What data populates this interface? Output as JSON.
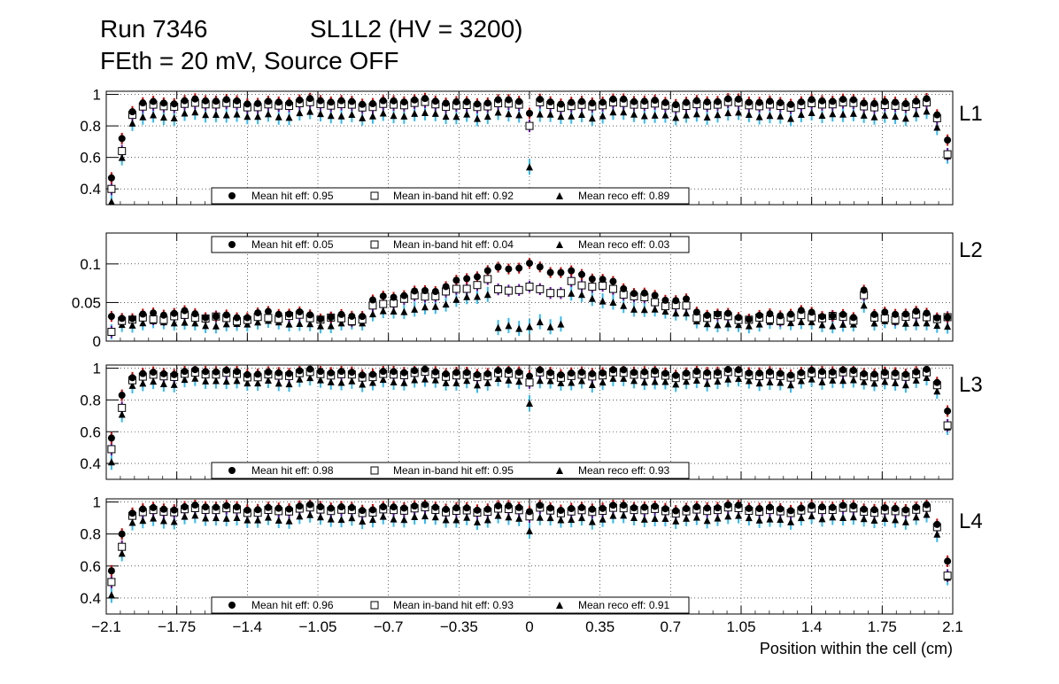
{
  "header": {
    "run": "Run 7346",
    "chamber": "SL1L2 (HV = 3200)",
    "conditions": "FEth = 20 mV, Source OFF"
  },
  "colors": {
    "hit_error": "#cc0000",
    "inband_error": "#6a0dad",
    "reco_error": "#33bbee",
    "marker": "#000000",
    "grid": "#000000"
  },
  "chart_data": {
    "type": "scatter",
    "xlabel": "Position within the cell (cm)",
    "xlim": [
      -2.1,
      2.1
    ],
    "x_ticks": [
      "−2.1",
      "−1.75",
      "−1.4",
      "−1.05",
      "−0.7",
      "−0.35",
      "0",
      "0.35",
      "0.7",
      "1.05",
      "1.4",
      "1.75",
      "2.1"
    ],
    "x_tick_values": [
      -2.1,
      -1.75,
      -1.4,
      -1.05,
      -0.7,
      -0.35,
      0,
      0.35,
      0.7,
      1.05,
      1.4,
      1.75,
      2.1
    ],
    "series_names": [
      "Mean hit eff",
      "Mean in-band hit eff",
      "Mean reco eff"
    ],
    "panels": [
      {
        "label": "L1",
        "ylim": [
          0.3,
          1.02
        ],
        "y_ticks": [
          "0.4",
          "0.6",
          "0.8",
          "1"
        ],
        "y_tick_values": [
          0.4,
          0.6,
          0.8,
          1.0
        ],
        "profile": "edge",
        "params": {
          "plateau": 0.955,
          "dip": 0.86,
          "edge1": 0.47,
          "edge2": 0.72,
          "edge3": 0.89,
          "edgeR": 0.71,
          "edgeR2": 0.87,
          "ib_ratio": 0.98,
          "reco_ratio": 0.92,
          "zero_hit": 0.88,
          "zero_ib": 0.8,
          "zero_reco": 0.54
        },
        "legend": {
          "position": "bottom",
          "hit": "Mean hit  eff: 0.95",
          "inband": "Mean in-band hit eff: 0.92",
          "reco": "Mean reco eff: 0.89"
        }
      },
      {
        "label": "L2",
        "ylim": [
          0.0,
          0.14
        ],
        "y_ticks": [
          "0",
          "0.05",
          "0.1"
        ],
        "y_tick_values": [
          0.0,
          0.05,
          0.1
        ],
        "profile": "noise",
        "params": {},
        "legend": {
          "position": "top",
          "hit": "Mean hit  eff: 0.05",
          "inband": "Mean in-band hit eff: 0.04",
          "reco": "Mean reco eff: 0.03"
        }
      },
      {
        "label": "L3",
        "ylim": [
          0.3,
          1.02
        ],
        "y_ticks": [
          "0.4",
          "0.6",
          "0.8",
          "1"
        ],
        "y_tick_values": [
          0.4,
          0.6,
          0.8,
          1.0
        ],
        "profile": "edge",
        "params": {
          "plateau": 0.975,
          "dip": 0.95,
          "edge1": 0.56,
          "edge2": 0.83,
          "edge3": 0.94,
          "edgeR": 0.73,
          "edgeR2": 0.91,
          "ib_ratio": 0.985,
          "reco_ratio": 0.95,
          "zero_hit": 0.95,
          "zero_ib": 0.91,
          "zero_reco": 0.78
        },
        "legend": {
          "position": "bottom",
          "hit": "Mean hit  eff: 0.98",
          "inband": "Mean in-band hit eff: 0.95",
          "reco": "Mean reco eff: 0.93"
        }
      },
      {
        "label": "L4",
        "ylim": [
          0.3,
          1.02
        ],
        "y_ticks": [
          "0.4",
          "0.6",
          "0.8",
          "1"
        ],
        "y_tick_values": [
          0.4,
          0.6,
          0.8,
          1.0
        ],
        "profile": "edge",
        "params": {
          "plateau": 0.965,
          "dip": 0.94,
          "edge1": 0.57,
          "edge2": 0.8,
          "edge3": 0.93,
          "edgeR": 0.63,
          "edgeR2": 0.86,
          "ib_ratio": 0.985,
          "reco_ratio": 0.94,
          "zero_hit": 0.94,
          "zero_ib": 0.91,
          "zero_reco": 0.82
        },
        "legend": {
          "position": "bottom",
          "hit": "Mean hit  eff: 0.96",
          "inband": "Mean in-band hit eff: 0.93",
          "reco": "Mean reco eff: 0.91"
        }
      }
    ]
  }
}
